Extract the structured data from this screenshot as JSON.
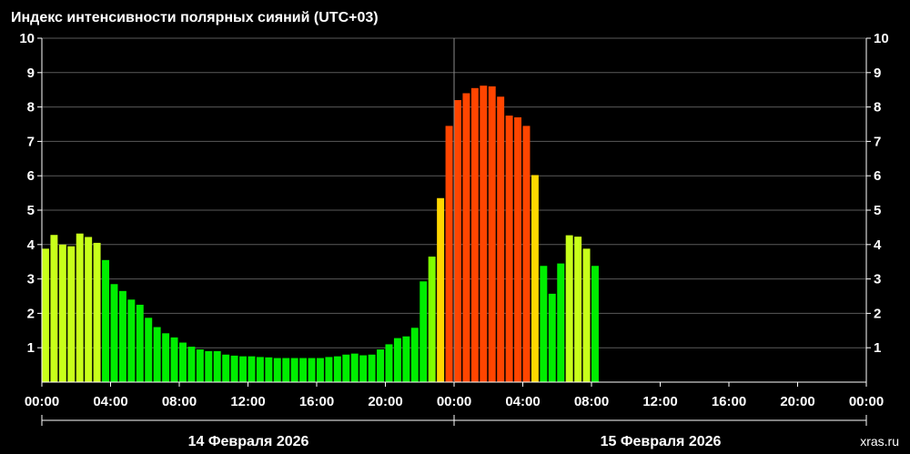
{
  "chart_data": {
    "type": "bar",
    "title": "Индекс интенсивности полярных сияний (UTC+03)",
    "ylim": [
      0,
      10
    ],
    "yticks": [
      1,
      2,
      3,
      4,
      5,
      6,
      7,
      8,
      9,
      10
    ],
    "grid": true,
    "xlim_hours": [
      0,
      48
    ],
    "xtick_labels": [
      "00:00",
      "04:00",
      "08:00",
      "12:00",
      "16:00",
      "20:00",
      "00:00",
      "04:00",
      "08:00",
      "12:00",
      "16:00",
      "20:00",
      "00:00"
    ],
    "date_labels": [
      "14 Февраля 2026",
      "15 Февраля 2026"
    ],
    "bar_interval_minutes": 30,
    "values": [
      3.88,
      4.28,
      4.0,
      3.95,
      4.32,
      4.22,
      4.05,
      3.55,
      2.85,
      2.65,
      2.4,
      2.25,
      1.87,
      1.6,
      1.42,
      1.3,
      1.15,
      1.03,
      0.95,
      0.9,
      0.9,
      0.8,
      0.77,
      0.75,
      0.75,
      0.73,
      0.72,
      0.7,
      0.7,
      0.7,
      0.7,
      0.7,
      0.7,
      0.73,
      0.75,
      0.8,
      0.83,
      0.78,
      0.8,
      0.95,
      1.1,
      1.28,
      1.33,
      1.58,
      2.93,
      3.65,
      5.35,
      7.45,
      8.2,
      8.4,
      8.55,
      8.62,
      8.6,
      8.3,
      7.75,
      7.7,
      7.45,
      6.02,
      3.38,
      2.57,
      3.45,
      4.27,
      4.23,
      3.88,
      3.38
    ],
    "colors": {
      "background": "#000000",
      "grid": "#5a5a5a",
      "divider": "#8a8a8a",
      "low": "#00ee00",
      "moderate": "#7fff00",
      "elevated": "#c8ff1a",
      "high": "#ffd700",
      "very_high": "#ff8c00",
      "extreme": "#ff4500"
    }
  },
  "watermark": "xras.ru"
}
